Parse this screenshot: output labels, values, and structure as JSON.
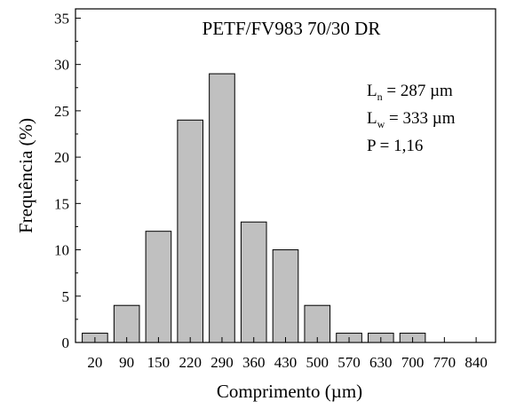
{
  "chart_data": {
    "type": "bar",
    "title": "PETF/FV983 70/30 DR",
    "xlabel": "Comprimento (µm)",
    "ylabel": "Frequência (%)",
    "ylim": [
      0,
      36
    ],
    "yticks": [
      0,
      5,
      10,
      15,
      20,
      25,
      30,
      35
    ],
    "categories": [
      "20",
      "90",
      "150",
      "220",
      "290",
      "360",
      "430",
      "500",
      "570",
      "630",
      "700",
      "770",
      "840"
    ],
    "values": [
      1,
      4,
      12,
      24,
      29,
      13,
      10,
      4,
      1,
      1,
      1,
      0,
      0
    ],
    "bar_color": "#c0c0c0",
    "bar_edge_color": "#000000",
    "grid": false,
    "annotations": [
      {
        "base": "L",
        "sub": "n",
        "rest": " = 287 µm"
      },
      {
        "base": "L",
        "sub": "w",
        "rest": " = 333 µm"
      },
      {
        "base": "P",
        "sub": "",
        "rest": " = 1,16"
      }
    ]
  }
}
